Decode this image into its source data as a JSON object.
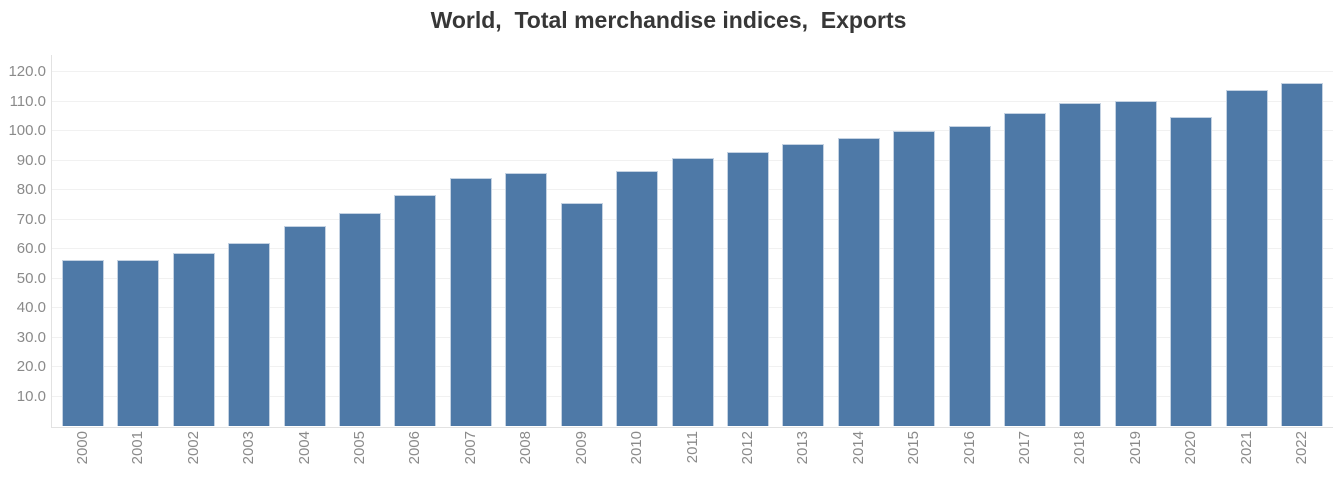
{
  "chart_data": {
    "type": "bar",
    "title": "World,  Total merchandise indices,  Exports",
    "categories": [
      "2000",
      "2001",
      "2002",
      "2003",
      "2004",
      "2005",
      "2006",
      "2007",
      "2008",
      "2009",
      "2010",
      "2011",
      "2012",
      "2013",
      "2014",
      "2015",
      "2016",
      "2017",
      "2018",
      "2019",
      "2020",
      "2021",
      "2022"
    ],
    "values": [
      56.3,
      56.3,
      58.6,
      62.0,
      67.8,
      72.2,
      78.3,
      84.1,
      85.8,
      75.6,
      86.4,
      90.8,
      92.9,
      95.6,
      97.6,
      100.0,
      101.7,
      106.1,
      109.5,
      110.2,
      104.7,
      113.9,
      116.3
    ],
    "xlabel": "",
    "ylabel": "",
    "ylim": [
      0,
      125.8
    ],
    "yticks": [
      10,
      20,
      30,
      40,
      50,
      60,
      70,
      80,
      90,
      100,
      110,
      120
    ],
    "ytick_labels": [
      "10.0",
      "20.0",
      "30.0",
      "40.0",
      "50.0",
      "60.0",
      "70.0",
      "80.0",
      "90.0",
      "100.0",
      "110.0",
      "120.0"
    ],
    "grid": true,
    "legend_position": "none",
    "bar_color": "#4e79a7",
    "bar_border_color": "#c4d2e2",
    "gridline_color": "#f1f1f1",
    "axis_line_color": "#e2e2e2",
    "tick_label_color": "#8a8a8a",
    "title_color": "#373737",
    "background_color": "#ffffff"
  }
}
